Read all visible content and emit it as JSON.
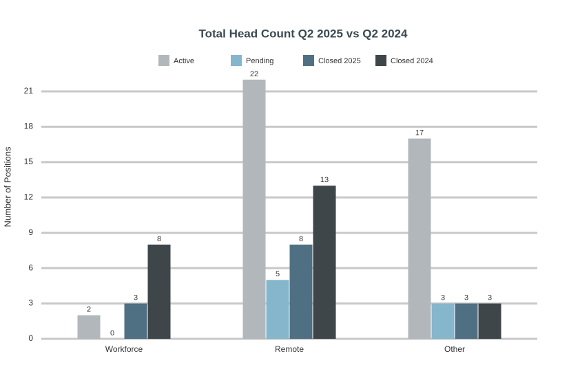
{
  "chart_data": {
    "type": "bar",
    "title": "Total Head Count Q2 2025 vs Q2 2024",
    "y_label": "Number of Positions",
    "categories": [
      "Workforce",
      "Remote",
      "Other"
    ],
    "series": [
      {
        "name": "Active",
        "color": "#b2b7bc",
        "values": [
          2,
          22,
          17
        ]
      },
      {
        "name": "Pending",
        "color": "#86b6cc",
        "values": [
          0,
          5,
          3
        ]
      },
      {
        "name": "Closed 2025",
        "color": "#4f7082",
        "values": [
          3,
          8,
          3
        ]
      },
      {
        "name": "Closed 2024",
        "color": "#3e4649",
        "values": [
          8,
          13,
          3
        ]
      }
    ],
    "ylim": [
      0,
      21
    ],
    "yticks": [
      0,
      3,
      6,
      9,
      12,
      15,
      18,
      21
    ],
    "grid": true
  }
}
